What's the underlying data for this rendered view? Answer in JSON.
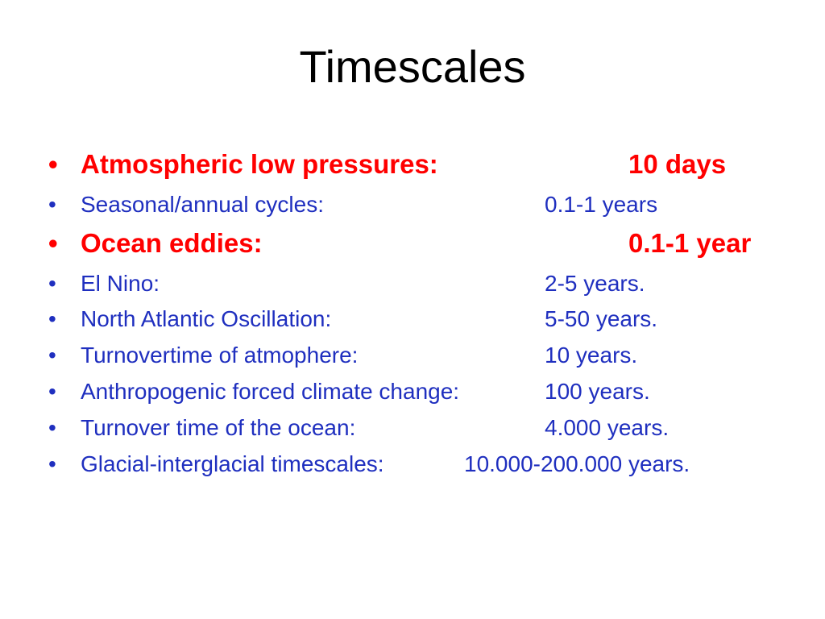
{
  "slide": {
    "title": "Timescales",
    "colors": {
      "title": "#000000",
      "normal_text": "#1f2fbf",
      "emphasis_text": "#ff0000"
    },
    "bullet_glyph": "•",
    "items": [
      {
        "label": "Atmospheric low pressures:",
        "value": "10 days",
        "emphasis": true
      },
      {
        "label": "Seasonal/annual cycles:",
        "value": "0.1-1 years",
        "emphasis": false
      },
      {
        "label": "Ocean eddies:",
        "value": "0.1-1 year",
        "emphasis": true
      },
      {
        "label": "El Nino:",
        "value": "2-5 years.",
        "emphasis": false
      },
      {
        "label": "North Atlantic Oscillation:",
        "value": "5-50 years.",
        "emphasis": false
      },
      {
        "label": "Turnovertime of atmophere:",
        "value": "10 years.",
        "emphasis": false
      },
      {
        "label": "Anthropogenic forced climate change:",
        "value": "100 years.",
        "emphasis": false
      },
      {
        "label": "Turnover time of the ocean:",
        "value": "4.000 years.",
        "emphasis": false
      },
      {
        "label": "Glacial-interglacial timescales:",
        "value": "10.000-200.000 years.",
        "emphasis": false
      }
    ]
  }
}
